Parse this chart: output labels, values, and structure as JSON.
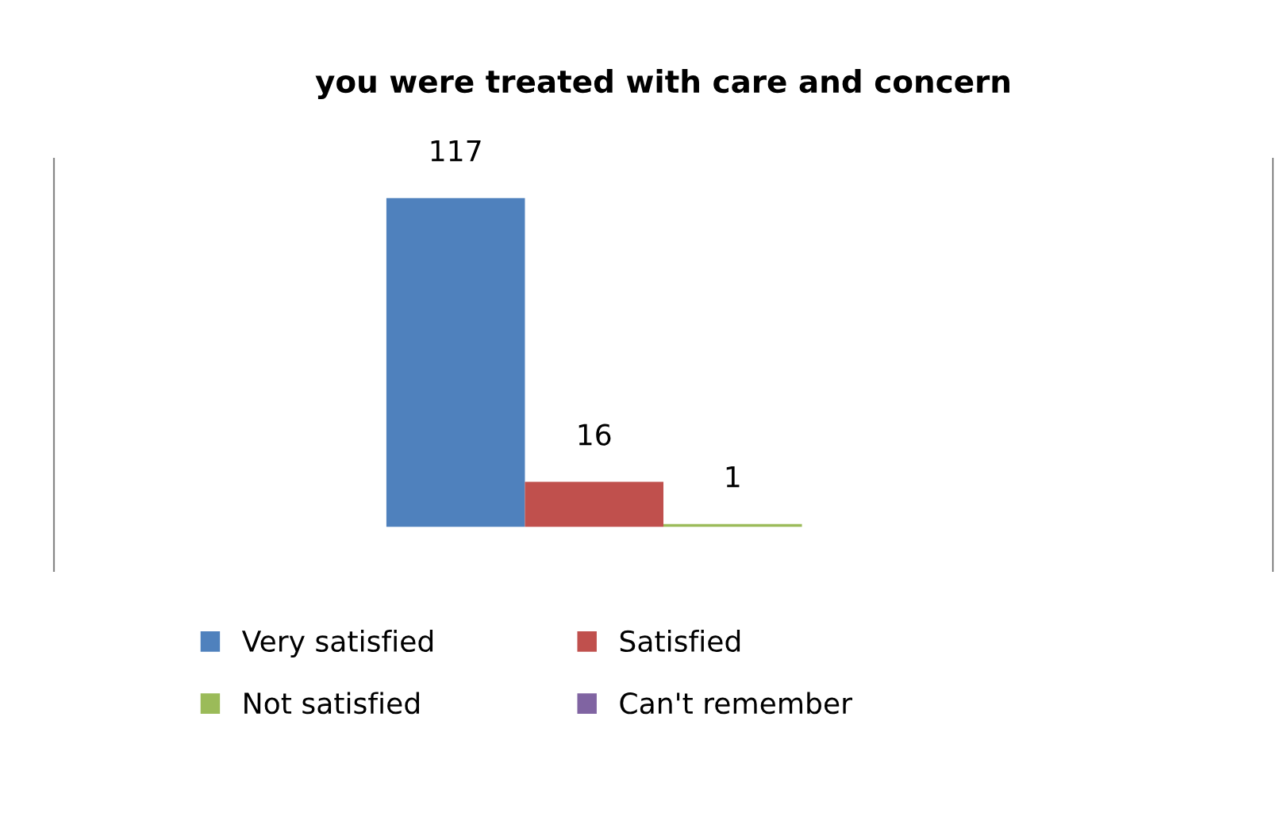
{
  "chart_data": {
    "type": "bar",
    "title": "you were treated with care and concern",
    "categories": [
      null
    ],
    "series": [
      {
        "name": "Very satisfied",
        "color": "#4f81bd",
        "values": [
          117
        ]
      },
      {
        "name": "Satisfied",
        "color": "#c0504d",
        "values": [
          16
        ]
      },
      {
        "name": "Not satisfied",
        "color": "#9bbb59",
        "values": [
          1
        ]
      },
      {
        "name": "Can't remember",
        "color": "#8064a2",
        "values": [
          null
        ]
      }
    ],
    "data_labels": true,
    "legend": "bottom"
  }
}
